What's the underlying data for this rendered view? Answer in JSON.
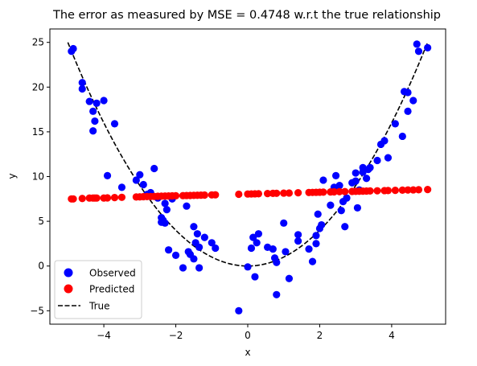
{
  "chart_data": {
    "type": "scatter",
    "title": "The error as measured by MSE = 0.4748 w.r.t the true relationship",
    "xlabel": "x",
    "ylabel": "y",
    "xlim": [
      -5.5,
      5.5
    ],
    "ylim": [
      -6.5,
      26.5
    ],
    "x_ticks": [
      -4,
      -2,
      0,
      2,
      4
    ],
    "x_tick_labels": [
      "−4",
      "−2",
      "0",
      "2",
      "4"
    ],
    "y_ticks": [
      -5,
      0,
      5,
      10,
      15,
      20,
      25
    ],
    "y_tick_labels": [
      "−5",
      "0",
      "5",
      "10",
      "15",
      "20",
      "25"
    ],
    "grid": false,
    "legend": {
      "placement": "lower-left",
      "entries": [
        "Observed",
        "Predicted",
        "True"
      ]
    },
    "colors": {
      "observed": "#0000ff",
      "predicted": "#ff0000",
      "true": "#000000"
    },
    "series": [
      {
        "name": "Observed",
        "kind": "scatter",
        "points": [
          [
            -4.9,
            24.0
          ],
          [
            -4.85,
            24.3
          ],
          [
            -4.6,
            20.5
          ],
          [
            -4.6,
            19.8
          ],
          [
            -4.4,
            18.4
          ],
          [
            -4.3,
            17.3
          ],
          [
            -4.3,
            15.1
          ],
          [
            -4.25,
            16.2
          ],
          [
            -4.2,
            18.2
          ],
          [
            -4.0,
            18.5
          ],
          [
            -3.9,
            10.1
          ],
          [
            -3.7,
            15.9
          ],
          [
            -3.5,
            8.8
          ],
          [
            -3.1,
            9.6
          ],
          [
            -3.0,
            10.2
          ],
          [
            -2.9,
            9.1
          ],
          [
            -2.8,
            8.0
          ],
          [
            -2.7,
            8.2
          ],
          [
            -2.6,
            10.9
          ],
          [
            -2.5,
            7.6
          ],
          [
            -2.4,
            5.4
          ],
          [
            -2.4,
            4.9
          ],
          [
            -2.35,
            5.1
          ],
          [
            -2.3,
            7.0
          ],
          [
            -2.3,
            4.8
          ],
          [
            -2.25,
            6.3
          ],
          [
            -2.2,
            1.8
          ],
          [
            -2.1,
            7.5
          ],
          [
            -2.0,
            1.2
          ],
          [
            -1.8,
            -0.2
          ],
          [
            -1.7,
            6.7
          ],
          [
            -1.65,
            1.6
          ],
          [
            -1.6,
            1.3
          ],
          [
            -1.5,
            4.4
          ],
          [
            -1.5,
            0.8
          ],
          [
            -1.45,
            2.6
          ],
          [
            -1.4,
            3.6
          ],
          [
            -1.35,
            2.1
          ],
          [
            -1.35,
            -0.2
          ],
          [
            -1.2,
            3.2
          ],
          [
            -1.0,
            2.6
          ],
          [
            -0.9,
            2.0
          ],
          [
            -0.25,
            -5.0
          ],
          [
            0.0,
            -0.1
          ],
          [
            0.1,
            2.0
          ],
          [
            0.15,
            3.2
          ],
          [
            0.2,
            -1.2
          ],
          [
            0.25,
            2.6
          ],
          [
            0.3,
            3.6
          ],
          [
            0.55,
            2.1
          ],
          [
            0.7,
            1.9
          ],
          [
            0.75,
            0.9
          ],
          [
            0.8,
            0.4
          ],
          [
            0.8,
            -3.2
          ],
          [
            1.0,
            4.8
          ],
          [
            1.05,
            1.6
          ],
          [
            1.15,
            -1.4
          ],
          [
            1.4,
            3.5
          ],
          [
            1.4,
            2.8
          ],
          [
            1.7,
            1.9
          ],
          [
            1.8,
            0.5
          ],
          [
            1.9,
            2.5
          ],
          [
            1.9,
            3.4
          ],
          [
            1.95,
            5.8
          ],
          [
            2.0,
            4.2
          ],
          [
            2.05,
            4.6
          ],
          [
            2.1,
            9.6
          ],
          [
            2.3,
            6.8
          ],
          [
            2.4,
            8.8
          ],
          [
            2.45,
            10.1
          ],
          [
            2.55,
            9.0
          ],
          [
            2.6,
            6.2
          ],
          [
            2.65,
            7.2
          ],
          [
            2.7,
            4.4
          ],
          [
            2.75,
            7.6
          ],
          [
            2.9,
            9.3
          ],
          [
            3.0,
            9.5
          ],
          [
            3.0,
            10.4
          ],
          [
            3.05,
            6.5
          ],
          [
            3.1,
            8.5
          ],
          [
            3.2,
            10.5
          ],
          [
            3.2,
            11.0
          ],
          [
            3.3,
            9.8
          ],
          [
            3.35,
            10.8
          ],
          [
            3.4,
            11.0
          ],
          [
            3.6,
            11.8
          ],
          [
            3.7,
            13.6
          ],
          [
            3.8,
            14.0
          ],
          [
            3.9,
            12.1
          ],
          [
            4.1,
            15.9
          ],
          [
            4.3,
            14.5
          ],
          [
            4.35,
            19.5
          ],
          [
            4.45,
            17.3
          ],
          [
            4.45,
            19.4
          ],
          [
            4.6,
            18.5
          ],
          [
            4.7,
            24.8
          ],
          [
            4.75,
            24.0
          ],
          [
            5.0,
            24.4
          ]
        ]
      },
      {
        "name": "Predicted",
        "kind": "scatter",
        "points": [
          [
            -4.9,
            7.5
          ],
          [
            -4.85,
            7.5
          ],
          [
            -4.6,
            7.55
          ],
          [
            -4.4,
            7.6
          ],
          [
            -4.3,
            7.6
          ],
          [
            -4.25,
            7.6
          ],
          [
            -4.2,
            7.6
          ],
          [
            -4.0,
            7.6
          ],
          [
            -3.9,
            7.62
          ],
          [
            -3.7,
            7.65
          ],
          [
            -3.5,
            7.68
          ],
          [
            -3.1,
            7.72
          ],
          [
            -3.0,
            7.73
          ],
          [
            -2.9,
            7.75
          ],
          [
            -2.8,
            7.76
          ],
          [
            -2.7,
            7.77
          ],
          [
            -2.6,
            7.78
          ],
          [
            -2.5,
            7.8
          ],
          [
            -2.4,
            7.81
          ],
          [
            -2.3,
            7.82
          ],
          [
            -2.2,
            7.83
          ],
          [
            -2.1,
            7.84
          ],
          [
            -2.0,
            7.85
          ],
          [
            -1.8,
            7.87
          ],
          [
            -1.7,
            7.88
          ],
          [
            -1.6,
            7.89
          ],
          [
            -1.5,
            7.9
          ],
          [
            -1.4,
            7.91
          ],
          [
            -1.3,
            7.92
          ],
          [
            -1.2,
            7.93
          ],
          [
            -1.0,
            7.95
          ],
          [
            -0.9,
            7.96
          ],
          [
            -0.25,
            8.02
          ],
          [
            0.0,
            8.05
          ],
          [
            0.1,
            8.06
          ],
          [
            0.2,
            8.07
          ],
          [
            0.3,
            8.08
          ],
          [
            0.55,
            8.1
          ],
          [
            0.7,
            8.12
          ],
          [
            0.8,
            8.13
          ],
          [
            1.0,
            8.15
          ],
          [
            1.15,
            8.16
          ],
          [
            1.4,
            8.19
          ],
          [
            1.7,
            8.22
          ],
          [
            1.8,
            8.23
          ],
          [
            1.9,
            8.24
          ],
          [
            2.0,
            8.25
          ],
          [
            2.1,
            8.26
          ],
          [
            2.3,
            8.28
          ],
          [
            2.4,
            8.29
          ],
          [
            2.55,
            8.31
          ],
          [
            2.7,
            8.32
          ],
          [
            2.9,
            8.34
          ],
          [
            3.0,
            8.35
          ],
          [
            3.1,
            8.36
          ],
          [
            3.2,
            8.37
          ],
          [
            3.3,
            8.38
          ],
          [
            3.4,
            8.39
          ],
          [
            3.6,
            8.41
          ],
          [
            3.8,
            8.43
          ],
          [
            3.9,
            8.44
          ],
          [
            4.1,
            8.46
          ],
          [
            4.3,
            8.48
          ],
          [
            4.45,
            8.5
          ],
          [
            4.6,
            8.51
          ],
          [
            4.75,
            8.53
          ],
          [
            5.0,
            8.55
          ]
        ]
      },
      {
        "name": "True",
        "kind": "line",
        "style": "dashed",
        "function": "y = x^2",
        "x_range": [
          -5,
          5
        ]
      }
    ]
  }
}
